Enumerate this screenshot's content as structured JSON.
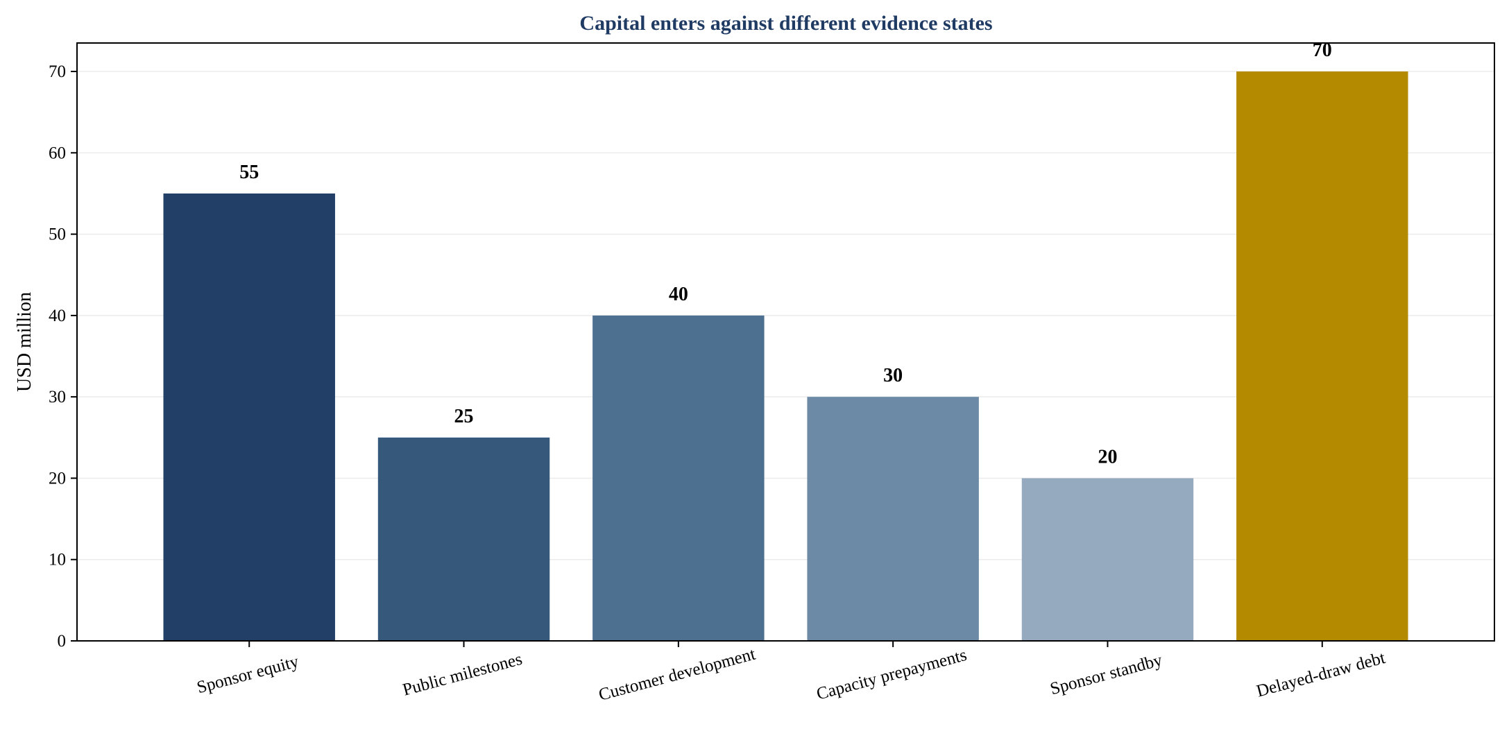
{
  "chart_data": {
    "type": "bar",
    "title": "Capital enters against different evidence states",
    "xlabel": "",
    "ylabel": "USD million",
    "categories": [
      "Sponsor equity",
      "Public milestones",
      "Customer development",
      "Capacity prepayments",
      "Sponsor standby",
      "Delayed-draw debt"
    ],
    "values": [
      55,
      25,
      40,
      30,
      20,
      70
    ],
    "data_labels": [
      "55",
      "25",
      "40",
      "30",
      "20",
      "70"
    ],
    "bar_colors": [
      "#213f67",
      "#35587b",
      "#4d7091",
      "#6c8aa6",
      "#95aabe",
      "#b38a00"
    ],
    "title_color": "#1f3b63",
    "ylim": [
      0,
      73.5
    ],
    "yticks": [
      0,
      10,
      20,
      30,
      40,
      50,
      60,
      70
    ],
    "ytick_labels": [
      "0",
      "10",
      "20",
      "30",
      "40",
      "50",
      "60",
      "70"
    ],
    "grid": "horizontal",
    "grid_color": "#ebebeb",
    "legend": "none"
  }
}
